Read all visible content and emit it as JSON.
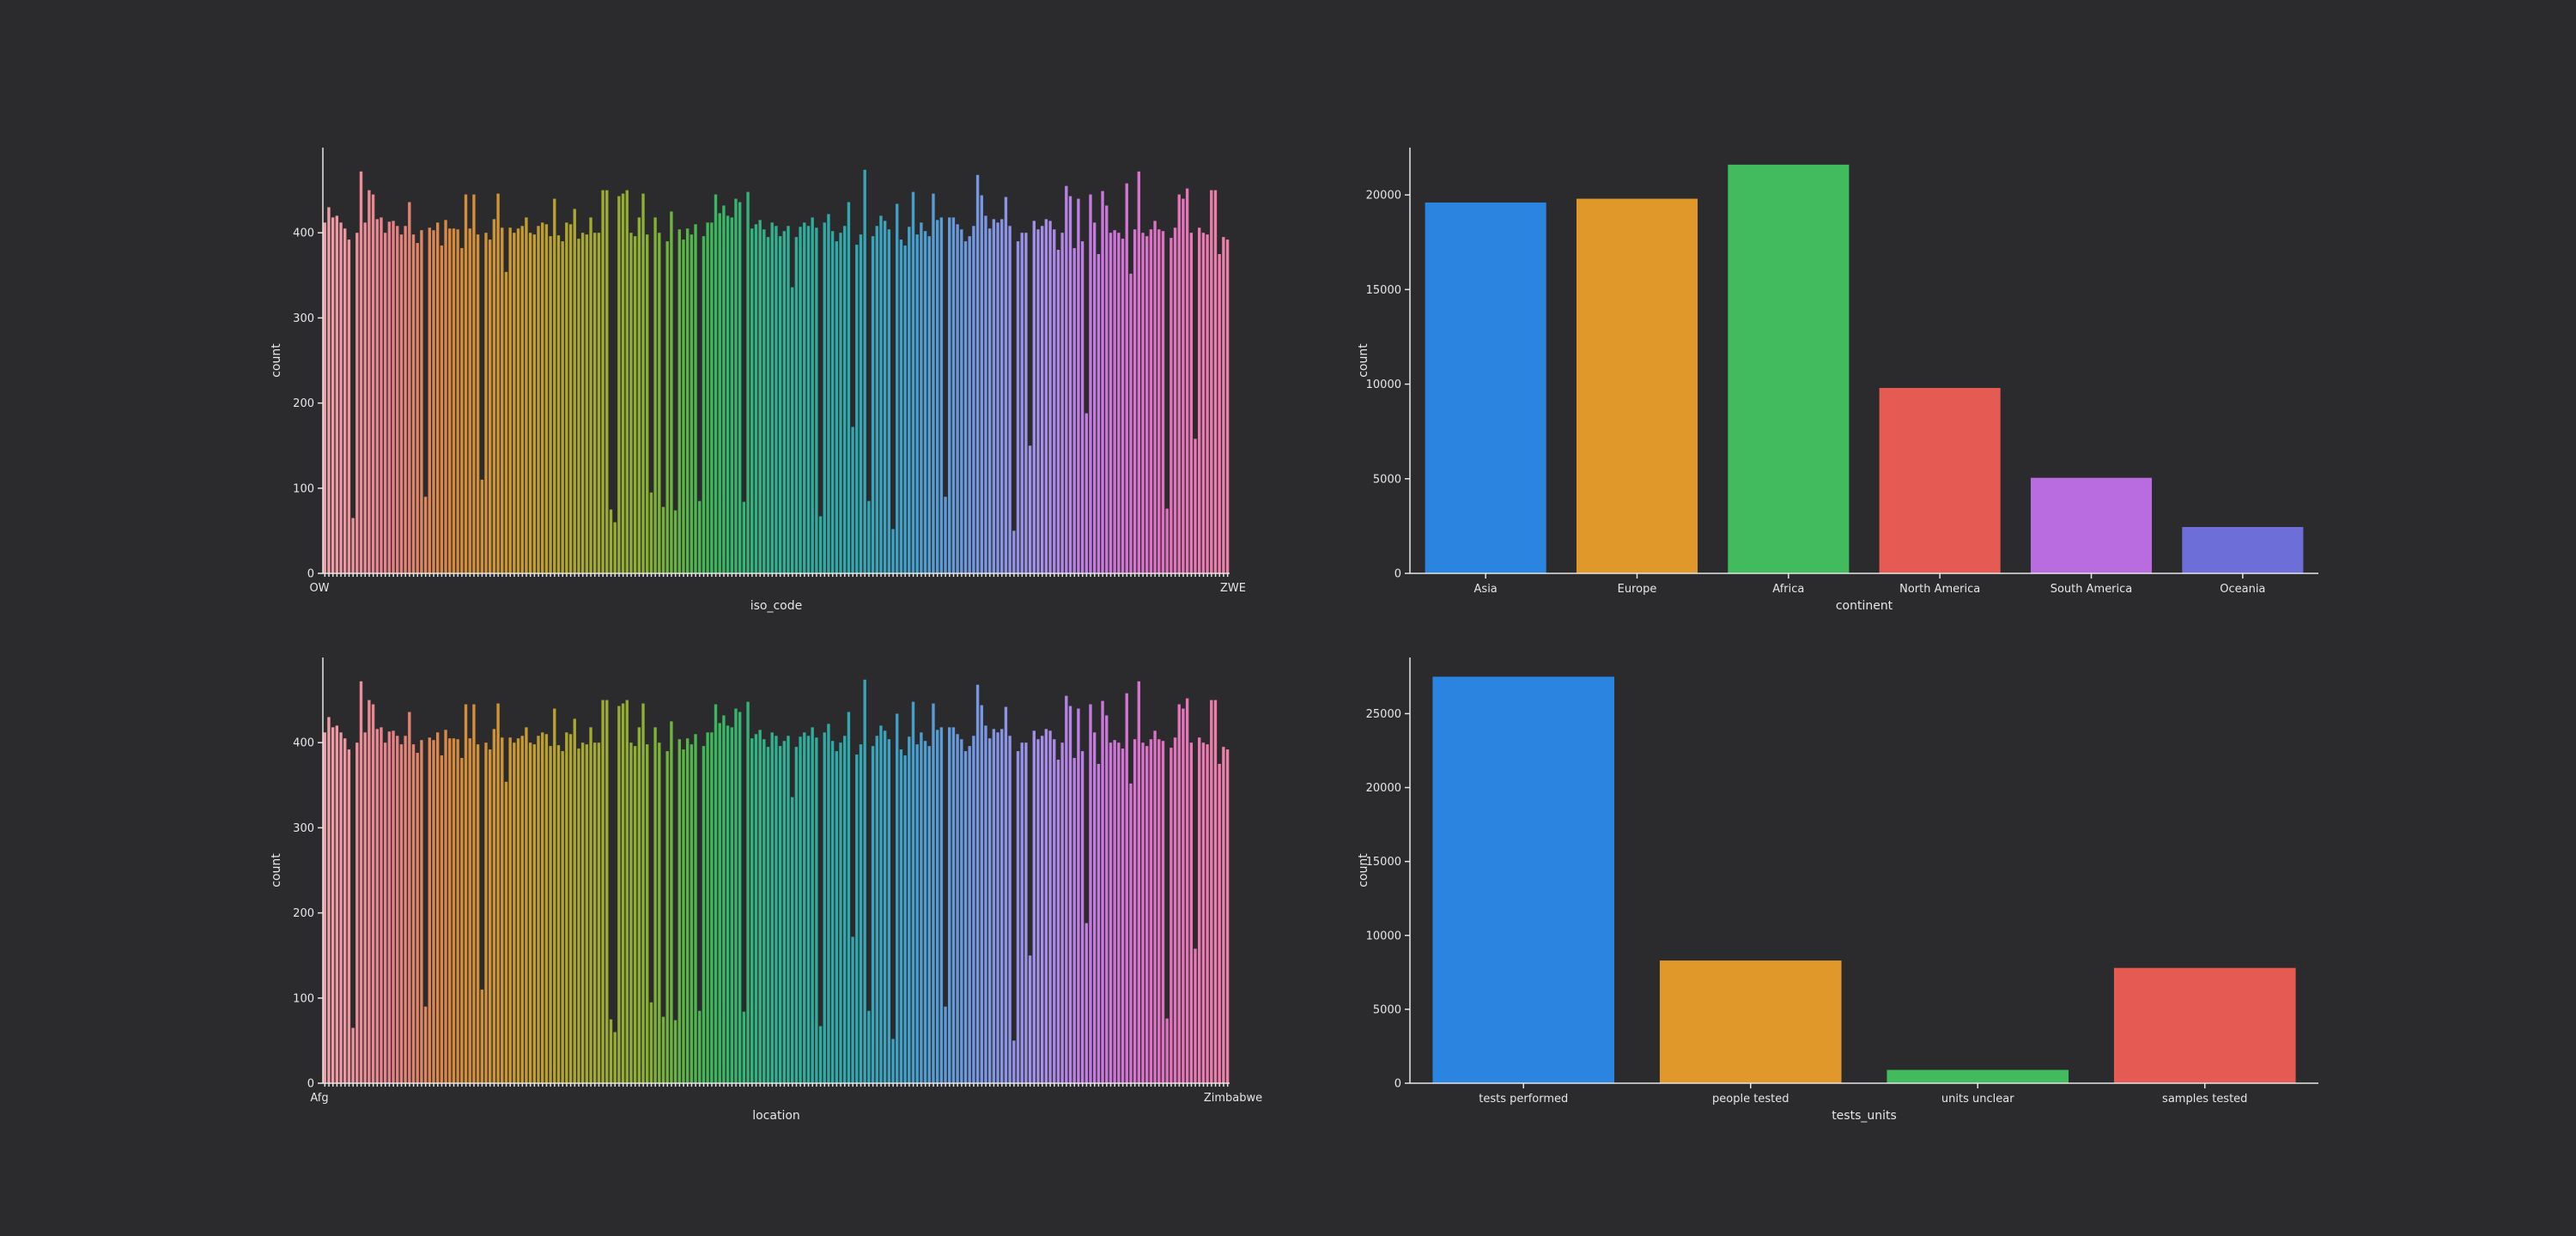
{
  "chart_data": [
    {
      "type": "bar",
      "xlabel": "iso_code",
      "ylabel": "count",
      "ylim": [
        0,
        500
      ],
      "yticks": [
        0,
        100,
        200,
        300,
        400
      ],
      "categories_note_visible": [
        "OWID_..."
      ],
      "visible_x_tick_labels": [
        "OW",
        "ZWE"
      ],
      "values": [
        412,
        430,
        418,
        420,
        412,
        405,
        392,
        65,
        400,
        472,
        412,
        450,
        445,
        416,
        418,
        400,
        413,
        414,
        408,
        398,
        408,
        436,
        398,
        388,
        403,
        90,
        406,
        403,
        412,
        385,
        415,
        405,
        405,
        404,
        382,
        445,
        405,
        445,
        398,
        110,
        400,
        392,
        416,
        446,
        406,
        354,
        406,
        400,
        405,
        408,
        418,
        400,
        398,
        408,
        412,
        410,
        396,
        440,
        397,
        390,
        412,
        410,
        428,
        393,
        400,
        398,
        418,
        400,
        400,
        450,
        450,
        75,
        60,
        443,
        446,
        450,
        400,
        396,
        418,
        446,
        398,
        95,
        418,
        400,
        78,
        390,
        425,
        74,
        404,
        392,
        405,
        398,
        410,
        85,
        396,
        412,
        412,
        445,
        423,
        432,
        420,
        418,
        440,
        436,
        84,
        448,
        405,
        410,
        415,
        404,
        395,
        412,
        408,
        396,
        402,
        408,
        336,
        395,
        407,
        412,
        408,
        418,
        406,
        67,
        412,
        422,
        402,
        390,
        400,
        408,
        436,
        172,
        386,
        398,
        474,
        85,
        396,
        408,
        420,
        414,
        404,
        52,
        434,
        392,
        385,
        407,
        448,
        398,
        412,
        402,
        396,
        446,
        415,
        418,
        90,
        418,
        418,
        410,
        404,
        390,
        396,
        408,
        468,
        444,
        420,
        405,
        416,
        412,
        416,
        442,
        408,
        50,
        390,
        400,
        400,
        150,
        414,
        404,
        408,
        416,
        414,
        404,
        380,
        400,
        455,
        443,
        382,
        440,
        390,
        188,
        445,
        412,
        375,
        449,
        432,
        400,
        403,
        400,
        393,
        458,
        352,
        404,
        472,
        400,
        396,
        404,
        414,
        404,
        402,
        76,
        394,
        406,
        445,
        440,
        452,
        400,
        158,
        406,
        400,
        398,
        450,
        450,
        375,
        395,
        392
      ],
      "palette": [
        "#f0a0a8",
        "#e8808a",
        "#d68a3a",
        "#c99a30",
        "#a8a830",
        "#8ab030",
        "#3ab85a",
        "#30b090",
        "#30a8a8",
        "#40a0c8",
        "#7098e0",
        "#a090e8",
        "#c878e0",
        "#e070c0",
        "#f080a8"
      ]
    },
    {
      "type": "bar",
      "xlabel": "continent",
      "ylabel": "count",
      "ylim": [
        0,
        22500
      ],
      "yticks": [
        0,
        5000,
        10000,
        15000,
        20000
      ],
      "categories": [
        "Asia",
        "Europe",
        "Africa",
        "North America",
        "South America",
        "Oceania"
      ],
      "values": [
        19600,
        19800,
        21600,
        9800,
        5050,
        2450
      ],
      "colors": [
        "#2a84e0",
        "#e0982a",
        "#42bb5e",
        "#e65a54",
        "#b86ce0",
        "#6e6ed8"
      ]
    },
    {
      "type": "bar",
      "xlabel": "location",
      "ylabel": "count",
      "ylim": [
        0,
        500
      ],
      "yticks": [
        0,
        100,
        200,
        300,
        400
      ],
      "visible_x_tick_labels": [
        "Afg",
        "Zimbabwe"
      ],
      "mirror_of": 0
    },
    {
      "type": "bar",
      "xlabel": "tests_units",
      "ylabel": "count",
      "ylim": [
        0,
        28800
      ],
      "yticks": [
        0,
        5000,
        10000,
        15000,
        20000,
        25000
      ],
      "categories": [
        "tests performed",
        "people tested",
        "units unclear",
        "samples tested"
      ],
      "values": [
        27500,
        8300,
        900,
        7800
      ],
      "colors": [
        "#2a84e0",
        "#e0982a",
        "#42bb5e",
        "#e65a54"
      ]
    }
  ]
}
